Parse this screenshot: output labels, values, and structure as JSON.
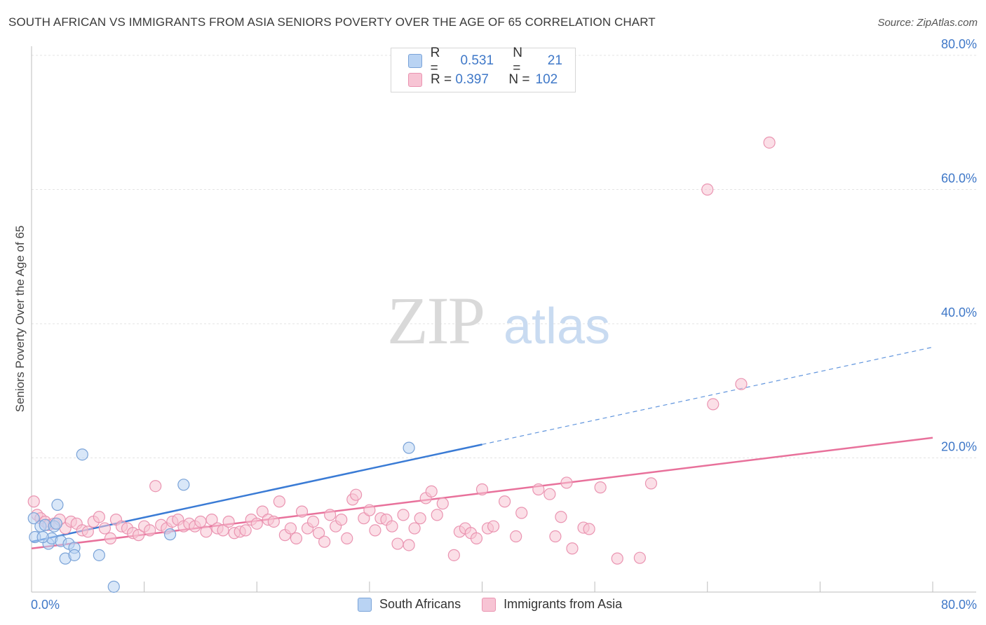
{
  "title": "SOUTH AFRICAN VS IMMIGRANTS FROM ASIA SENIORS POVERTY OVER THE AGE OF 65 CORRELATION CHART",
  "source": "Source: ZipAtlas.com",
  "watermark": {
    "zip": "ZIP",
    "atlas": "atlas"
  },
  "legend": {
    "rows": [
      {
        "r_label": "R =",
        "r_value": "0.531",
        "n_label": "N =",
        "n_value": "21"
      },
      {
        "r_label": "R =",
        "r_value": "0.397",
        "n_label": "N =",
        "n_value": "102"
      }
    ]
  },
  "bottom_legend": [
    "South Africans",
    "Immigrants from Asia"
  ],
  "colors": {
    "blue_fill": "#b9d3f3",
    "blue_stroke": "#7aa3d8",
    "blue_line": "#3a7bd5",
    "pink_fill": "#f7c4d4",
    "pink_stroke": "#ea94b1",
    "pink_line": "#e8719b",
    "axis_value": "#3f78c8"
  },
  "chart_data": {
    "type": "scatter",
    "title": "SOUTH AFRICAN VS IMMIGRANTS FROM ASIA SENIORS POVERTY OVER THE AGE OF 65 CORRELATION CHART",
    "xlabel": "",
    "ylabel": "Seniors Poverty Over the Age of 65",
    "xlim": [
      0,
      80
    ],
    "ylim": [
      0,
      80
    ],
    "x_tick_labels": [
      "0.0%",
      "80.0%"
    ],
    "y_tick_labels": [
      "20.0%",
      "40.0%",
      "60.0%",
      "80.0%"
    ],
    "y_ticks": [
      20,
      40,
      60,
      80
    ],
    "grid": true,
    "legend_position": "top-center",
    "series": [
      {
        "name": "South Africans",
        "r": 0.531,
        "n": 21,
        "trend": {
          "x0": 0,
          "y0": 7.5,
          "x1": 40,
          "y1": 22,
          "dashed_to_x": 80,
          "dashed_to_y": 36.5
        },
        "points": [
          [
            0.2,
            11.0
          ],
          [
            0.3,
            8.2
          ],
          [
            0.8,
            9.8
          ],
          [
            1.2,
            10.0
          ],
          [
            1.5,
            7.2
          ],
          [
            1.8,
            8.0
          ],
          [
            2.0,
            9.8
          ],
          [
            2.3,
            13.0
          ],
          [
            2.6,
            7.6
          ],
          [
            3.0,
            5.0
          ],
          [
            3.3,
            7.2
          ],
          [
            3.8,
            6.6
          ],
          [
            3.8,
            5.5
          ],
          [
            4.5,
            20.5
          ],
          [
            6.0,
            5.5
          ],
          [
            7.3,
            0.8
          ],
          [
            12.3,
            8.6
          ],
          [
            13.5,
            16.0
          ],
          [
            33.5,
            21.5
          ],
          [
            2.2,
            10.2
          ],
          [
            1.0,
            8.2
          ]
        ]
      },
      {
        "name": "Immigrants from Asia",
        "r": 0.397,
        "n": 102,
        "trend": {
          "x0": 0,
          "y0": 6.5,
          "x1": 80,
          "y1": 23
        },
        "points": [
          [
            0.2,
            13.5
          ],
          [
            0.5,
            11.5
          ],
          [
            0.8,
            11.0
          ],
          [
            1.2,
            10.5
          ],
          [
            1.5,
            10.0
          ],
          [
            2.0,
            10.2
          ],
          [
            2.5,
            10.8
          ],
          [
            3.0,
            9.5
          ],
          [
            3.5,
            10.5
          ],
          [
            4.0,
            10.2
          ],
          [
            4.5,
            9.2
          ],
          [
            5.0,
            9.0
          ],
          [
            5.5,
            10.5
          ],
          [
            6.0,
            11.2
          ],
          [
            6.5,
            9.5
          ],
          [
            7.0,
            8.0
          ],
          [
            7.5,
            10.8
          ],
          [
            8.0,
            9.8
          ],
          [
            8.5,
            9.5
          ],
          [
            9.0,
            8.8
          ],
          [
            9.5,
            8.5
          ],
          [
            10.0,
            9.8
          ],
          [
            10.5,
            9.2
          ],
          [
            11.0,
            15.8
          ],
          [
            11.5,
            10.0
          ],
          [
            12.0,
            9.5
          ],
          [
            12.5,
            10.5
          ],
          [
            13.0,
            10.8
          ],
          [
            13.5,
            9.8
          ],
          [
            14.0,
            10.2
          ],
          [
            14.5,
            9.8
          ],
          [
            15.0,
            10.5
          ],
          [
            15.5,
            9.0
          ],
          [
            16.0,
            10.8
          ],
          [
            16.5,
            9.5
          ],
          [
            17.0,
            9.2
          ],
          [
            17.5,
            10.5
          ],
          [
            18.0,
            8.8
          ],
          [
            18.5,
            9.0
          ],
          [
            19.0,
            9.2
          ],
          [
            19.5,
            10.8
          ],
          [
            20.0,
            10.2
          ],
          [
            20.5,
            12.0
          ],
          [
            21.0,
            10.8
          ],
          [
            21.5,
            10.5
          ],
          [
            22.0,
            13.5
          ],
          [
            22.5,
            8.5
          ],
          [
            23.0,
            9.5
          ],
          [
            23.5,
            8.0
          ],
          [
            24.0,
            12.0
          ],
          [
            24.5,
            9.5
          ],
          [
            25.0,
            10.5
          ],
          [
            25.5,
            8.8
          ],
          [
            26.0,
            7.5
          ],
          [
            26.5,
            11.5
          ],
          [
            27.0,
            9.8
          ],
          [
            27.5,
            10.8
          ],
          [
            28.0,
            8.0
          ],
          [
            28.5,
            13.8
          ],
          [
            28.8,
            14.5
          ],
          [
            29.5,
            11.0
          ],
          [
            30.0,
            12.2
          ],
          [
            30.5,
            9.2
          ],
          [
            31.0,
            11.0
          ],
          [
            31.5,
            10.8
          ],
          [
            32.0,
            9.8
          ],
          [
            32.5,
            7.2
          ],
          [
            33.0,
            11.5
          ],
          [
            33.5,
            7.0
          ],
          [
            34.0,
            9.5
          ],
          [
            34.5,
            11.0
          ],
          [
            35.0,
            14.0
          ],
          [
            35.5,
            15.0
          ],
          [
            36.0,
            11.5
          ],
          [
            36.5,
            13.2
          ],
          [
            37.5,
            5.5
          ],
          [
            38.0,
            9.0
          ],
          [
            38.5,
            9.5
          ],
          [
            39.0,
            8.8
          ],
          [
            39.5,
            8.0
          ],
          [
            40.0,
            15.3
          ],
          [
            40.5,
            9.5
          ],
          [
            41.0,
            9.8
          ],
          [
            42.0,
            13.5
          ],
          [
            43.0,
            8.3
          ],
          [
            43.5,
            11.8
          ],
          [
            45.0,
            15.3
          ],
          [
            46.0,
            14.6
          ],
          [
            46.5,
            8.3
          ],
          [
            47.0,
            11.2
          ],
          [
            47.5,
            16.3
          ],
          [
            48.0,
            6.5
          ],
          [
            49.0,
            9.6
          ],
          [
            49.5,
            9.4
          ],
          [
            50.5,
            15.6
          ],
          [
            52.0,
            5.0
          ],
          [
            54.0,
            5.1
          ],
          [
            55.0,
            16.2
          ],
          [
            60.0,
            60.0
          ],
          [
            65.5,
            67.0
          ],
          [
            60.5,
            28.0
          ],
          [
            63.0,
            31.0
          ]
        ]
      }
    ]
  }
}
